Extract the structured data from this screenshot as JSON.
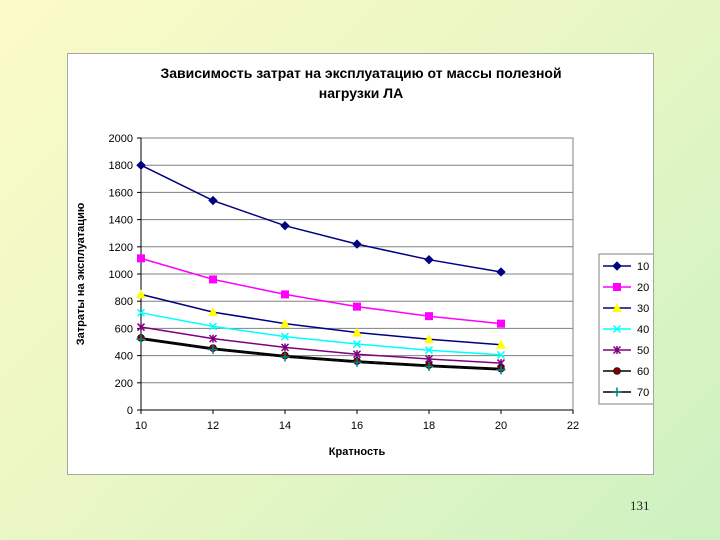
{
  "slide": {
    "number": "131"
  },
  "chart_data": {
    "type": "line",
    "title_lines": [
      "Зависимость затрат на эксплуатацию от массы полезной",
      "нагрузки ЛА"
    ],
    "xlabel": "Кратность",
    "ylabel": "Затраты на эксплуатацию",
    "xlim": [
      10,
      22
    ],
    "ylim": [
      0,
      2000
    ],
    "xticks": [
      10,
      12,
      14,
      16,
      18,
      20,
      22
    ],
    "yticks": [
      0,
      200,
      400,
      600,
      800,
      1000,
      1200,
      1400,
      1600,
      1800,
      2000
    ],
    "grid": "horizontal",
    "legend_position": "right",
    "x": [
      10,
      12,
      14,
      16,
      18,
      20
    ],
    "series": [
      {
        "name": "10",
        "values": [
          1800,
          1540,
          1355,
          1220,
          1105,
          1015
        ],
        "color": "#000080",
        "marker": "diamond"
      },
      {
        "name": "20",
        "values": [
          1115,
          960,
          850,
          760,
          690,
          635
        ],
        "color": "#ff00ff",
        "marker": "square"
      },
      {
        "name": "30",
        "values": [
          850,
          720,
          635,
          570,
          520,
          480
        ],
        "color": "#ffff00",
        "marker": "triangle"
      },
      {
        "name": "40",
        "values": [
          715,
          615,
          540,
          485,
          440,
          405
        ],
        "color": "#00ffff",
        "marker": "x"
      },
      {
        "name": "50",
        "values": [
          610,
          525,
          460,
          410,
          375,
          345
        ],
        "color": "#800080",
        "marker": "star"
      },
      {
        "name": "60",
        "values": [
          530,
          455,
          400,
          360,
          330,
          305
        ],
        "color": "#800000",
        "marker": "circle"
      },
      {
        "name": "70",
        "values": [
          520,
          445,
          390,
          350,
          320,
          295
        ],
        "color": "#008080",
        "marker": "plus"
      }
    ]
  }
}
